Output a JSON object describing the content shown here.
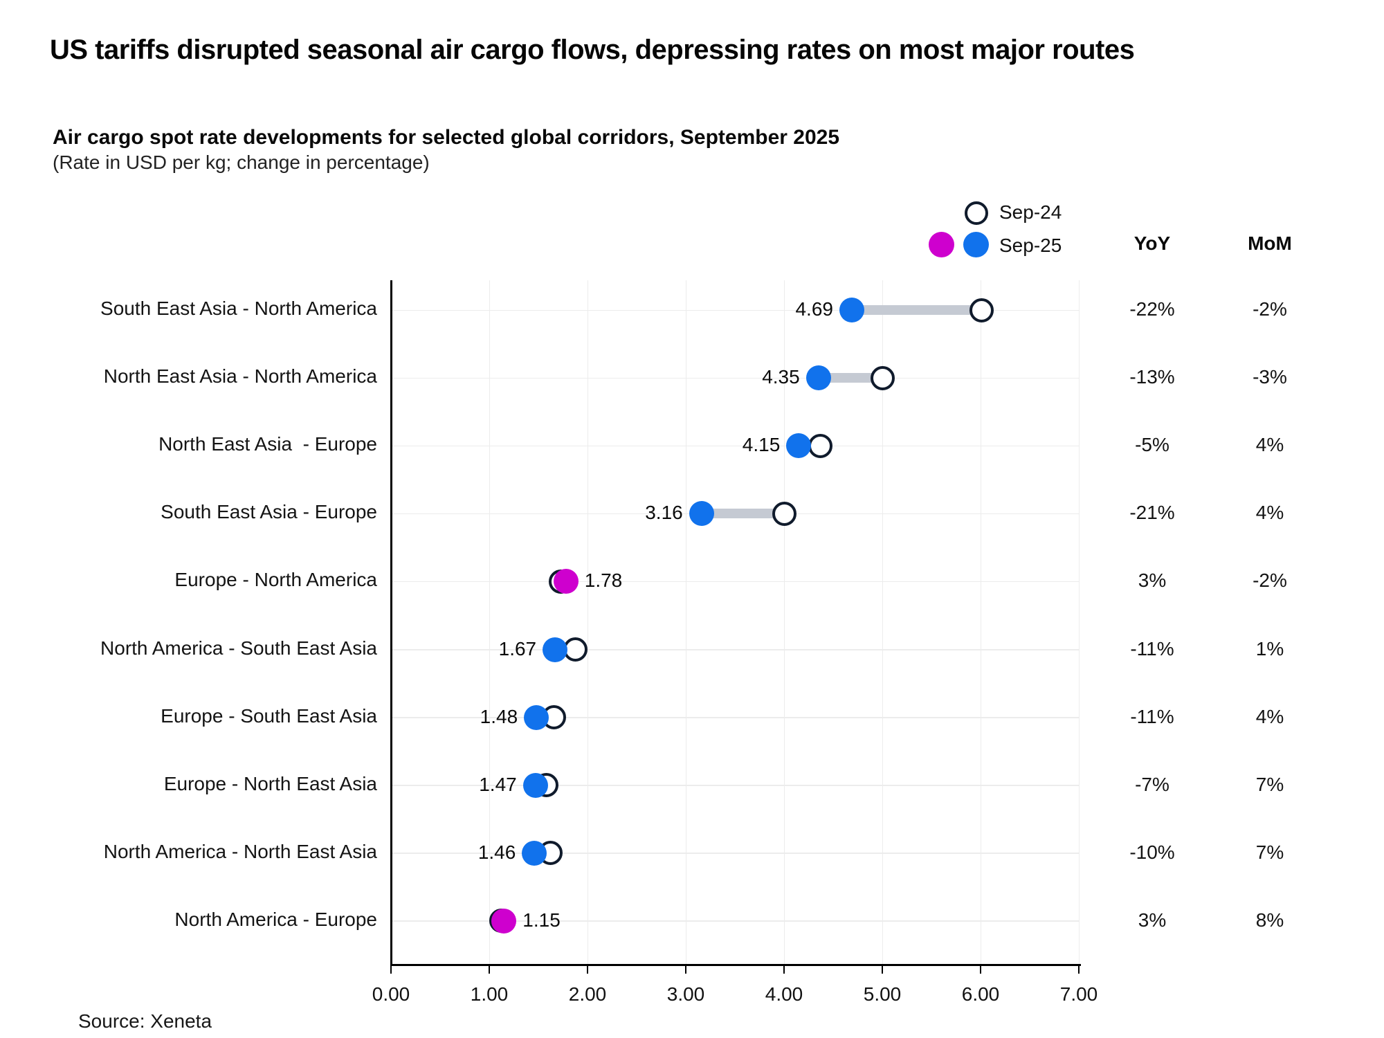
{
  "title": "US tariffs disrupted seasonal air cargo flows, depressing rates on most major routes",
  "subtitle": "Air cargo spot rate developments for selected global corridors, September 2025",
  "subtitle_note": "(Rate in USD per kg; change in percentage)",
  "legend": {
    "sep24_label": "Sep-24",
    "sep25_label": "Sep-25"
  },
  "columns": {
    "yoy": "YoY",
    "mom": "MoM"
  },
  "source": "Source: Xeneta",
  "colors": {
    "sep25_blue": "#1172EC",
    "sep25_magenta": "#CE00CE",
    "sep24_fill": "#FFFFFF",
    "sep24_stroke": "#101B2C",
    "connector": "#C5CAD3",
    "gridline": "#ECECEC",
    "axis": "#000000"
  },
  "chart_data": {
    "type": "dumbbell",
    "title": "Air cargo spot rate developments for selected global corridors, September 2025",
    "xlabel": "Rate in USD per kg",
    "x_axis": {
      "min": 0,
      "max": 7,
      "tick_step": 1,
      "tick_labels": [
        "0.00",
        "1.00",
        "2.00",
        "3.00",
        "4.00",
        "5.00",
        "6.00",
        "7.00"
      ]
    },
    "grid": true,
    "legend_position": "top-right",
    "series_names": [
      "Sep-24",
      "Sep-25"
    ],
    "rows": [
      {
        "label": "South East Asia - North America",
        "sep25": 4.69,
        "sep25_label": "4.69",
        "sep24": 6.01,
        "color": "blue",
        "value_side": "left",
        "yoy": "-22%",
        "mom": "-2%"
      },
      {
        "label": "North East Asia - North America",
        "sep25": 4.35,
        "sep25_label": "4.35",
        "sep24": 5.0,
        "color": "blue",
        "value_side": "left",
        "yoy": "-13%",
        "mom": "-3%"
      },
      {
        "label": "North East Asia  - Europe",
        "sep25": 4.15,
        "sep25_label": "4.15",
        "sep24": 4.37,
        "color": "blue",
        "value_side": "left",
        "yoy": "-5%",
        "mom": "4%"
      },
      {
        "label": "South East Asia - Europe",
        "sep25": 3.16,
        "sep25_label": "3.16",
        "sep24": 4.0,
        "color": "blue",
        "value_side": "left",
        "yoy": "-21%",
        "mom": "4%"
      },
      {
        "label": "Europe - North America",
        "sep25": 1.78,
        "sep25_label": "1.78",
        "sep24": 1.73,
        "color": "magenta",
        "value_side": "right",
        "yoy": "3%",
        "mom": "-2%"
      },
      {
        "label": "North America - South East Asia",
        "sep25": 1.67,
        "sep25_label": "1.67",
        "sep24": 1.88,
        "color": "blue",
        "value_side": "left",
        "yoy": "-11%",
        "mom": "1%"
      },
      {
        "label": "Europe - South East Asia",
        "sep25": 1.48,
        "sep25_label": "1.48",
        "sep24": 1.66,
        "color": "blue",
        "value_side": "left",
        "yoy": "-11%",
        "mom": "4%"
      },
      {
        "label": "Europe - North East Asia",
        "sep25": 1.47,
        "sep25_label": "1.47",
        "sep24": 1.58,
        "color": "blue",
        "value_side": "left",
        "yoy": "-7%",
        "mom": "7%"
      },
      {
        "label": "North America - North East Asia",
        "sep25": 1.46,
        "sep25_label": "1.46",
        "sep24": 1.62,
        "color": "blue",
        "value_side": "left",
        "yoy": "-10%",
        "mom": "7%"
      },
      {
        "label": "North America - Europe",
        "sep25": 1.15,
        "sep25_label": "1.15",
        "sep24": 1.12,
        "color": "magenta",
        "value_side": "right",
        "yoy": "3%",
        "mom": "8%"
      }
    ]
  }
}
